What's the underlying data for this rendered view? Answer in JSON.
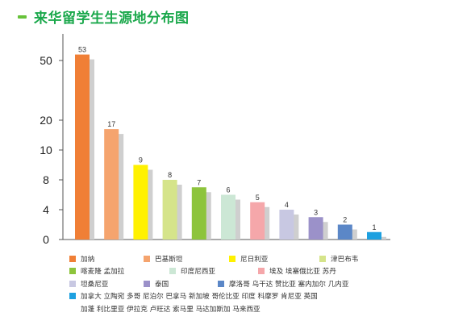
{
  "title": "来华留学生生源地分布图",
  "chart_data": {
    "type": "bar",
    "title": "来华留学生生源地分布图",
    "xlabel": "",
    "ylabel": "",
    "yticks": [
      0,
      4,
      8,
      10,
      20,
      50
    ],
    "grid": false,
    "legend_position": "bottom",
    "colors": [
      "#f07f36",
      "#f5a46e",
      "#fff100",
      "#d5e48a",
      "#8dc43c",
      "#cce7d5",
      "#f5a7aa",
      "#c8c8e2",
      "#9b91c9",
      "#5b87c7",
      "#1da0e0"
    ],
    "series": [
      {
        "name": "加纳",
        "value": 53
      },
      {
        "name": "巴基斯坦",
        "value": 17
      },
      {
        "name": "尼日利亚",
        "value": 9
      },
      {
        "name": "津巴布韦",
        "value": 8
      },
      {
        "name": "喀麦隆 孟加拉",
        "value": 7
      },
      {
        "name": "印度尼西亚",
        "value": 6
      },
      {
        "name": "埃及 埃塞俄比亚 苏丹",
        "value": 5
      },
      {
        "name": "坦桑尼亚",
        "value": 4
      },
      {
        "name": "泰国",
        "value": 3
      },
      {
        "name": "摩洛哥 乌干达 赞比亚 塞内加尔 几内亚",
        "value": 2
      },
      {
        "name": "加拿大 立陶宛 多哥 尼泊尔 巴拿马 新加坡 哥伦比亚 印度 科摩罗 肯尼亚 英国",
        "name_cont": "加蓬 利比里亚 伊拉克 卢旺达 索马里 马达加斯加 马来西亚",
        "value": 1
      }
    ]
  }
}
